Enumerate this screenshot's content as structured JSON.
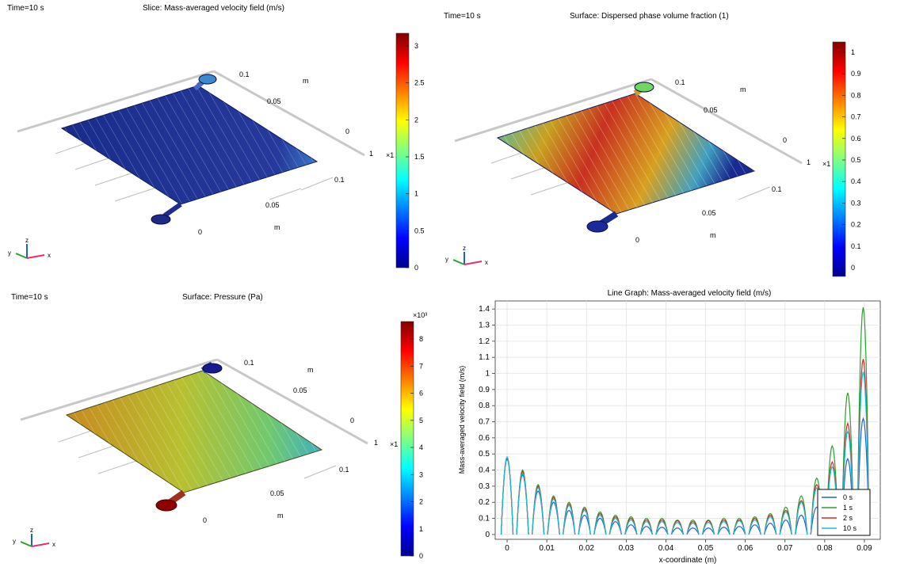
{
  "panels": [
    {
      "time": "Time=10 s",
      "title": "Slice: Mass-averaged velocity field (m/s)",
      "colorbar": {
        "ticks": [
          "3",
          "2.5",
          "2",
          "1.5",
          "1",
          "0.5",
          "0"
        ],
        "exponent": ""
      },
      "axis_ticks": {
        "y_top": "0.1",
        "y_mid": "0.05",
        "y_zero": "0",
        "z_one": "1",
        "x_a": "0.1",
        "x_b": "0.05",
        "x_zero": "0",
        "unit": "m",
        "scale": "×1"
      },
      "coloring": "velocity"
    },
    {
      "time": "Time=10 s",
      "title": "Surface: Dispersed phase volume fraction (1)",
      "colorbar": {
        "ticks": [
          "1",
          "0.9",
          "0.8",
          "0.7",
          "0.6",
          "0.5",
          "0.4",
          "0.3",
          "0.2",
          "0.1",
          "0"
        ],
        "exponent": ""
      },
      "axis_ticks": {
        "y_top": "0.1",
        "y_mid": "0.05",
        "y_zero": "0",
        "z_one": "1",
        "x_a": "0.1",
        "x_b": "0.05",
        "x_zero": "0",
        "unit": "m",
        "scale": "×1"
      },
      "coloring": "fraction"
    },
    {
      "time": "Time=10 s",
      "title": "Surface: Pressure (Pa)",
      "colorbar": {
        "ticks": [
          "8",
          "7",
          "6",
          "5",
          "4",
          "3",
          "2",
          "1",
          "0"
        ],
        "exponent": "×10³"
      },
      "axis_ticks": {
        "y_top": "0.1",
        "y_mid": "0.05",
        "y_zero": "0",
        "z_one": "1",
        "x_a": "0.1",
        "x_b": "0.05",
        "x_zero": "0",
        "unit": "m",
        "scale": "×1"
      },
      "coloring": "pressure"
    }
  ],
  "triad": {
    "x": "x",
    "y": "y",
    "z": "z"
  },
  "colors": {
    "jet_low": "#00008f",
    "jet_high": "#800000"
  },
  "chart_data": {
    "type": "line",
    "title": "Line Graph: Mass-averaged velocity field (m/s)",
    "xlabel": "x-coordinate (m)",
    "ylabel": "Mass-averaged velocity field (m/s)",
    "xlim": [
      -0.003,
      0.094
    ],
    "ylim": [
      -0.03,
      1.45
    ],
    "xticks": [
      "0",
      "0.01",
      "0.02",
      "0.03",
      "0.04",
      "0.05",
      "0.06",
      "0.07",
      "0.08",
      "0.09"
    ],
    "yticks": [
      "0",
      "0.1",
      "0.2",
      "0.3",
      "0.4",
      "0.5",
      "0.6",
      "0.7",
      "0.8",
      "0.9",
      "1",
      "1.1",
      "1.2",
      "1.3",
      "1.4"
    ],
    "grid": true,
    "legend_position": "bottom-right",
    "channel_x": [
      0,
      0.0039,
      0.0078,
      0.0117,
      0.0156,
      0.0195,
      0.0234,
      0.0273,
      0.0312,
      0.0351,
      0.039,
      0.0429,
      0.0468,
      0.0507,
      0.0546,
      0.0585,
      0.0624,
      0.0663,
      0.0702,
      0.0741,
      0.078,
      0.0819,
      0.0858,
      0.0897
    ],
    "channel_halfwidth": 0.0015,
    "series": [
      {
        "name": "0 s",
        "color": "#2b5fd9",
        "peaks": [
          0.47,
          0.37,
          0.27,
          0.2,
          0.15,
          0.12,
          0.1,
          0.08,
          0.06,
          0.05,
          0.045,
          0.04,
          0.04,
          0.04,
          0.045,
          0.05,
          0.06,
          0.07,
          0.09,
          0.12,
          0.17,
          0.25,
          0.47,
          0.72
        ]
      },
      {
        "name": "1 s",
        "color": "#2ca02c",
        "peaks": [
          0.48,
          0.4,
          0.31,
          0.24,
          0.2,
          0.17,
          0.14,
          0.12,
          0.11,
          0.1,
          0.1,
          0.09,
          0.09,
          0.09,
          0.1,
          0.1,
          0.11,
          0.13,
          0.17,
          0.24,
          0.35,
          0.55,
          0.88,
          1.41
        ]
      },
      {
        "name": "2 s",
        "color": "#d62728",
        "peaks": [
          0.48,
          0.39,
          0.3,
          0.23,
          0.19,
          0.16,
          0.13,
          0.11,
          0.1,
          0.09,
          0.09,
          0.085,
          0.08,
          0.085,
          0.09,
          0.09,
          0.1,
          0.12,
          0.15,
          0.21,
          0.31,
          0.45,
          0.69,
          1.09
        ]
      },
      {
        "name": "10 s",
        "color": "#17becf",
        "peaks": [
          0.48,
          0.38,
          0.29,
          0.22,
          0.18,
          0.15,
          0.12,
          0.1,
          0.09,
          0.08,
          0.08,
          0.075,
          0.07,
          0.075,
          0.08,
          0.085,
          0.09,
          0.11,
          0.14,
          0.2,
          0.29,
          0.42,
          0.64,
          1.01
        ]
      }
    ]
  }
}
